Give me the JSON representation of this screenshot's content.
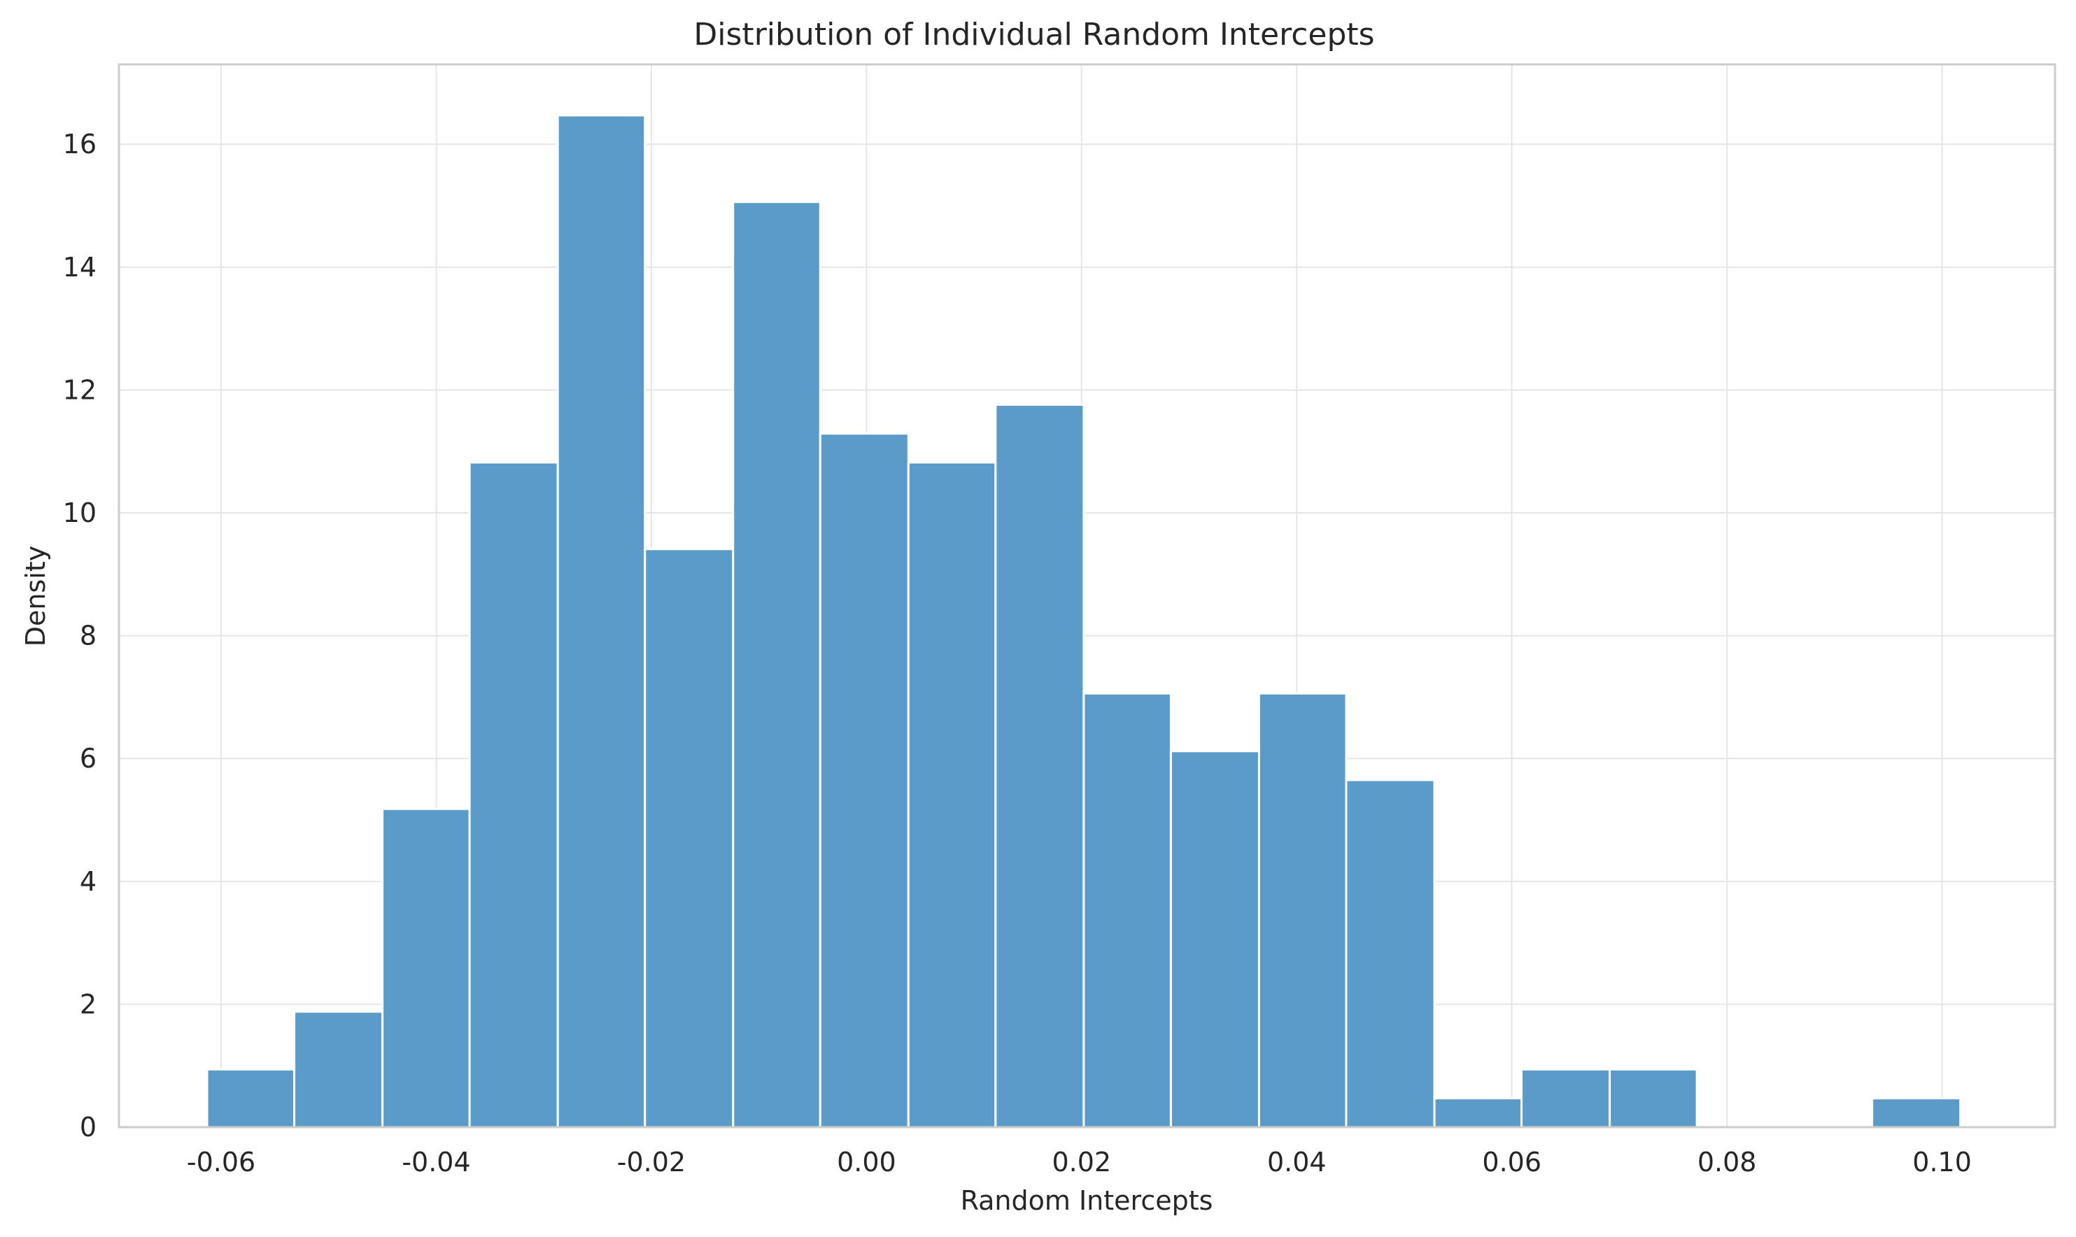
{
  "chart_data": {
    "type": "bar",
    "title": "Distribution of Individual Random Intercepts",
    "xlabel": "Random Intercepts",
    "ylabel": "Density",
    "xlim": [
      -0.0695,
      0.1105
    ],
    "ylim": [
      0,
      17.3
    ],
    "grid": true,
    "bar_color": "#5b9bc9",
    "x_ticks": [
      "-0.06",
      "-0.04",
      "-0.02",
      "0.00",
      "0.02",
      "0.04",
      "0.06",
      "0.08",
      "0.10"
    ],
    "x_tick_values": [
      -0.06,
      -0.04,
      -0.02,
      0.0,
      0.02,
      0.04,
      0.06,
      0.08,
      0.1
    ],
    "y_ticks": [
      "0",
      "2",
      "4",
      "6",
      "8",
      "10",
      "12",
      "14",
      "16"
    ],
    "y_tick_values": [
      0,
      2,
      4,
      6,
      8,
      10,
      12,
      14,
      16
    ],
    "bins": [
      {
        "x0": -0.0613,
        "x1": -0.0532,
        "value": 0.94
      },
      {
        "x0": -0.0532,
        "x1": -0.045,
        "value": 1.88
      },
      {
        "x0": -0.045,
        "x1": -0.0369,
        "value": 5.18
      },
      {
        "x0": -0.0369,
        "x1": -0.0287,
        "value": 10.82
      },
      {
        "x0": -0.0287,
        "x1": -0.0206,
        "value": 16.47
      },
      {
        "x0": -0.0206,
        "x1": -0.0124,
        "value": 9.41
      },
      {
        "x0": -0.0124,
        "x1": -0.0043,
        "value": 15.06
      },
      {
        "x0": -0.0043,
        "x1": 0.0039,
        "value": 11.29
      },
      {
        "x0": 0.0039,
        "x1": 0.012,
        "value": 10.82
      },
      {
        "x0": 0.012,
        "x1": 0.0202,
        "value": 11.76
      },
      {
        "x0": 0.0202,
        "x1": 0.0283,
        "value": 7.06
      },
      {
        "x0": 0.0283,
        "x1": 0.0365,
        "value": 6.12
      },
      {
        "x0": 0.0365,
        "x1": 0.0446,
        "value": 7.06
      },
      {
        "x0": 0.0446,
        "x1": 0.0528,
        "value": 5.65
      },
      {
        "x0": 0.0528,
        "x1": 0.0609,
        "value": 0.47
      },
      {
        "x0": 0.0609,
        "x1": 0.0691,
        "value": 0.94
      },
      {
        "x0": 0.0691,
        "x1": 0.0772,
        "value": 0.94
      },
      {
        "x0": 0.0772,
        "x1": 0.0854,
        "value": 0
      },
      {
        "x0": 0.0854,
        "x1": 0.0935,
        "value": 0
      },
      {
        "x0": 0.0935,
        "x1": 0.1017,
        "value": 0.47
      }
    ]
  }
}
